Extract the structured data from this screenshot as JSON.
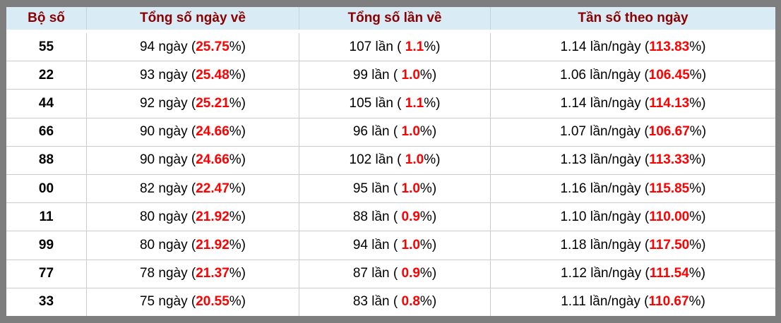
{
  "colors": {
    "frame_border": "#7e7e7e",
    "header_bg": "#d9ecf6",
    "header_text": "#8b0000",
    "highlight_red": "#ff0000",
    "body_text": "#000000",
    "grid_line": "#cccccc"
  },
  "table": {
    "headers": [
      "Bộ số",
      "Tổng số ngày về",
      "Tổng số lần về",
      "Tần số theo ngày"
    ],
    "rows": [
      {
        "pair": "55",
        "days_pre": "94 ngày (",
        "days_red": "25.75",
        "days_post": "%)",
        "times_pre": "107 lần ( ",
        "times_red": "1.1",
        "times_post": "%)",
        "freq_pre": "1.14 lần/ngày (",
        "freq_red": "113.83",
        "freq_post": "%)"
      },
      {
        "pair": "22",
        "days_pre": "93 ngày (",
        "days_red": "25.48",
        "days_post": "%)",
        "times_pre": "99 lần ( ",
        "times_red": "1.0",
        "times_post": "%)",
        "freq_pre": "1.06 lần/ngày (",
        "freq_red": "106.45",
        "freq_post": "%)"
      },
      {
        "pair": "44",
        "days_pre": "92 ngày (",
        "days_red": "25.21",
        "days_post": "%)",
        "times_pre": "105 lần ( ",
        "times_red": "1.1",
        "times_post": "%)",
        "freq_pre": "1.14 lần/ngày (",
        "freq_red": "114.13",
        "freq_post": "%)"
      },
      {
        "pair": "66",
        "days_pre": "90 ngày (",
        "days_red": "24.66",
        "days_post": "%)",
        "times_pre": "96 lần ( ",
        "times_red": "1.0",
        "times_post": "%)",
        "freq_pre": "1.07 lần/ngày (",
        "freq_red": "106.67",
        "freq_post": "%)"
      },
      {
        "pair": "88",
        "days_pre": "90 ngày (",
        "days_red": "24.66",
        "days_post": "%)",
        "times_pre": "102 lần ( ",
        "times_red": "1.0",
        "times_post": "%)",
        "freq_pre": "1.13 lần/ngày (",
        "freq_red": "113.33",
        "freq_post": "%)"
      },
      {
        "pair": "00",
        "days_pre": "82 ngày (",
        "days_red": "22.47",
        "days_post": "%)",
        "times_pre": "95 lần ( ",
        "times_red": "1.0",
        "times_post": "%)",
        "freq_pre": "1.16 lần/ngày (",
        "freq_red": "115.85",
        "freq_post": "%)"
      },
      {
        "pair": "11",
        "days_pre": "80 ngày (",
        "days_red": "21.92",
        "days_post": "%)",
        "times_pre": "88 lần ( ",
        "times_red": "0.9",
        "times_post": "%)",
        "freq_pre": "1.10 lần/ngày (",
        "freq_red": "110.00",
        "freq_post": "%)"
      },
      {
        "pair": "99",
        "days_pre": "80 ngày (",
        "days_red": "21.92",
        "days_post": "%)",
        "times_pre": "94 lần ( ",
        "times_red": "1.0",
        "times_post": "%)",
        "freq_pre": "1.18 lần/ngày (",
        "freq_red": "117.50",
        "freq_post": "%)"
      },
      {
        "pair": "77",
        "days_pre": "78 ngày (",
        "days_red": "21.37",
        "days_post": "%)",
        "times_pre": "87 lần ( ",
        "times_red": "0.9",
        "times_post": "%)",
        "freq_pre": "1.12 lần/ngày (",
        "freq_red": "111.54",
        "freq_post": "%)"
      },
      {
        "pair": "33",
        "days_pre": "75 ngày (",
        "days_red": "20.55",
        "days_post": "%)",
        "times_pre": "83 lần ( ",
        "times_red": "0.8",
        "times_post": "%)",
        "freq_pre": "1.11 lần/ngày (",
        "freq_red": "110.67",
        "freq_post": "%)"
      }
    ]
  }
}
